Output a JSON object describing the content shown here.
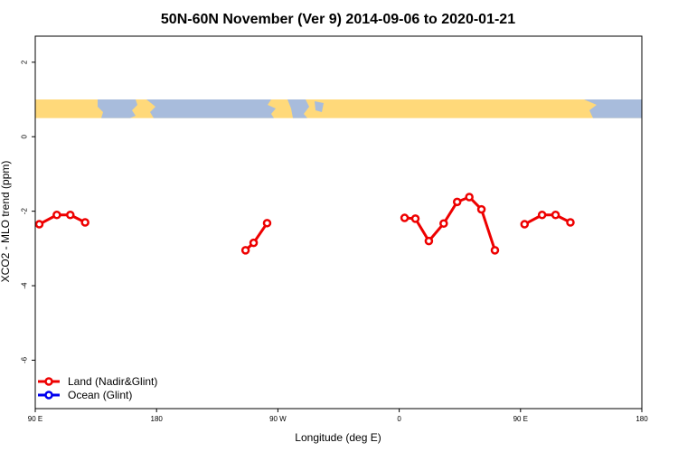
{
  "chart_data": {
    "type": "line",
    "title": "50N-60N November (Ver 9)   2014-09-06 to 2020-01-21",
    "xlabel": "Longitude (deg E)",
    "ylabel": "XCO2 - MLO trend (ppm)",
    "xlim": [
      90,
      540
    ],
    "ylim": [
      -7.3,
      2.7
    ],
    "x_ticks": [
      {
        "value": 90,
        "label": "90 E"
      },
      {
        "value": 180,
        "label": "180"
      },
      {
        "value": 270,
        "label": "90 W"
      },
      {
        "value": 360,
        "label": "0"
      },
      {
        "value": 450,
        "label": "90 E"
      },
      {
        "value": 540,
        "label": "180"
      }
    ],
    "y_ticks": [
      {
        "value": 2,
        "label": "2"
      },
      {
        "value": 0,
        "label": "0"
      },
      {
        "value": -2,
        "label": "-2"
      },
      {
        "value": -4,
        "label": "-4"
      },
      {
        "value": -6,
        "label": "-6"
      }
    ],
    "map_band": {
      "ymin": 0.5,
      "ymax": 1.0,
      "land_color": "#ffd97a",
      "ocean_color": "#a8bcdc"
    },
    "series": [
      {
        "name": "Land (Nadir&Glint)",
        "color": "#ee0000",
        "segments": [
          [
            [
              93,
              -2.35
            ],
            [
              106,
              -2.1
            ],
            [
              116,
              -2.1
            ],
            [
              127,
              -2.3
            ]
          ],
          [
            [
              246,
              -3.05
            ],
            [
              252,
              -2.85
            ],
            [
              262,
              -2.32
            ]
          ],
          [
            [
              364,
              -2.18
            ],
            [
              372,
              -2.2
            ],
            [
              382,
              -2.8
            ],
            [
              393,
              -2.33
            ],
            [
              403,
              -1.75
            ],
            [
              412,
              -1.62
            ],
            [
              421,
              -1.95
            ],
            [
              431,
              -3.05
            ]
          ],
          [
            [
              453,
              -2.35
            ],
            [
              466,
              -2.1
            ],
            [
              476,
              -2.1
            ],
            [
              487,
              -2.3
            ]
          ]
        ]
      },
      {
        "name": "Ocean (Glint)",
        "color": "#0000ee",
        "segments": []
      }
    ]
  }
}
